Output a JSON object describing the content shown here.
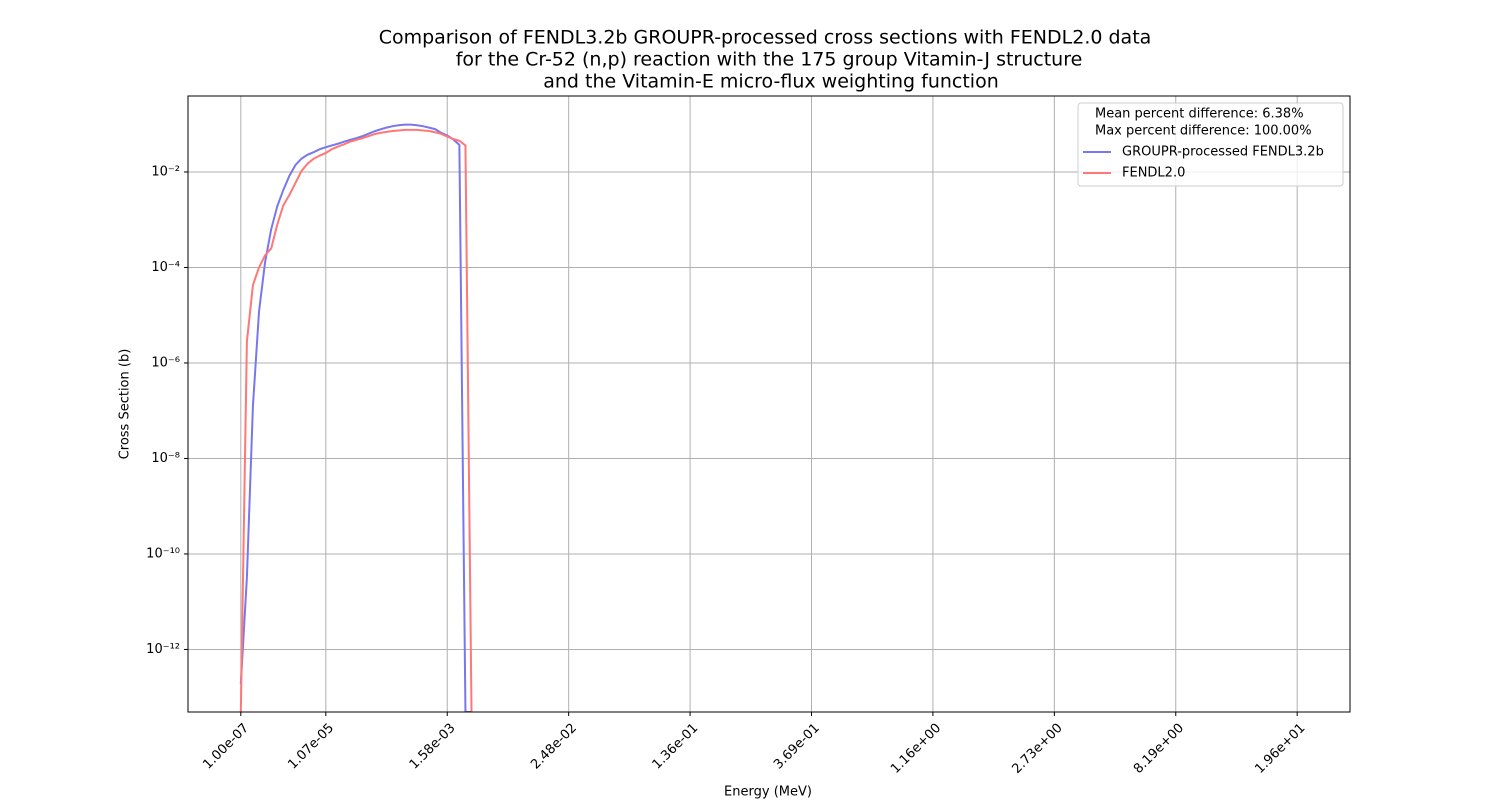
{
  "chart_data": {
    "type": "line",
    "title": [
      "Comparison of FENDL3.2b GROUPR-processed cross sections with FENDL2.0 data",
      "for the Cr-52 (n,p) reaction with the 175 group Vitamin-J structure",
      "and the Vitamin-E micro-flux weighting function"
    ],
    "xlabel": "Energy (MeV)",
    "ylabel": "Cross Section (b)",
    "log_y": true,
    "grid": true,
    "legend_position": "upper right",
    "legend_notes": [
      "Mean percent difference: 6.38%",
      "Max percent difference: 100.00%"
    ],
    "x": [
      0,
      1,
      2,
      3,
      4,
      5,
      6,
      7,
      8,
      9,
      10,
      11,
      12,
      13,
      14,
      15,
      16,
      17,
      18,
      19,
      20,
      21,
      22,
      23,
      24,
      25,
      26,
      27,
      28,
      29,
      30,
      31,
      32,
      33,
      34,
      35,
      36,
      37,
      38
    ],
    "series": [
      {
        "name": "GROUPR-processed FENDL3.2b",
        "color": "#7777ee",
        "values": [
          1.9e-13,
          3.2e-11,
          1.3e-07,
          1.2e-05,
          0.00013,
          0.00063,
          0.0019,
          0.0042,
          0.0083,
          0.014,
          0.019,
          0.023,
          0.026,
          0.03,
          0.033,
          0.036,
          0.039,
          0.043,
          0.047,
          0.051,
          0.056,
          0.063,
          0.071,
          0.078,
          0.085,
          0.091,
          0.095,
          0.098,
          0.098,
          0.095,
          0.091,
          0.085,
          0.079,
          0.066,
          0.058,
          0.048,
          0.037,
          0,
          0
        ]
      },
      {
        "name": "FENDL2.0",
        "color": "#ff7777",
        "values": [
          0,
          2.8e-06,
          4.3e-05,
          0.0001,
          0.00018,
          0.00025,
          0.00079,
          0.002,
          0.0033,
          0.0059,
          0.0105,
          0.015,
          0.019,
          0.022,
          0.025,
          0.03,
          0.034,
          0.038,
          0.043,
          0.047,
          0.051,
          0.056,
          0.062,
          0.066,
          0.069,
          0.072,
          0.074,
          0.076,
          0.076,
          0.076,
          0.074,
          0.072,
          0.068,
          0.063,
          0.055,
          0.049,
          0.045,
          0.036,
          0
        ]
      }
    ],
    "xlim": [
      -8.7,
      182.7
    ],
    "xticks": [
      {
        "value": 0,
        "label": "1.00e-07"
      },
      {
        "value": 14,
        "label": "1.07e-05"
      },
      {
        "value": 34,
        "label": "1.58e-03"
      },
      {
        "value": 54,
        "label": "2.48e-02"
      },
      {
        "value": 74,
        "label": "1.36e-01"
      },
      {
        "value": 94,
        "label": "3.69e-01"
      },
      {
        "value": 114,
        "label": "1.16e+00"
      },
      {
        "value": 134,
        "label": "2.73e+00"
      },
      {
        "value": 154,
        "label": "8.19e+00"
      },
      {
        "value": 174,
        "label": "1.96e+01"
      }
    ],
    "ylim": [
      4.9e-14,
      0.39
    ],
    "yticks": [
      {
        "value": 1e-12,
        "label": "10⁻¹²"
      },
      {
        "value": 1e-10,
        "label": "10⁻¹⁰"
      },
      {
        "value": 1e-08,
        "label": "10⁻⁸"
      },
      {
        "value": 1e-06,
        "label": "10⁻⁶"
      },
      {
        "value": 0.0001,
        "label": "10⁻⁴"
      },
      {
        "value": 0.01,
        "label": "10⁻²"
      }
    ]
  }
}
